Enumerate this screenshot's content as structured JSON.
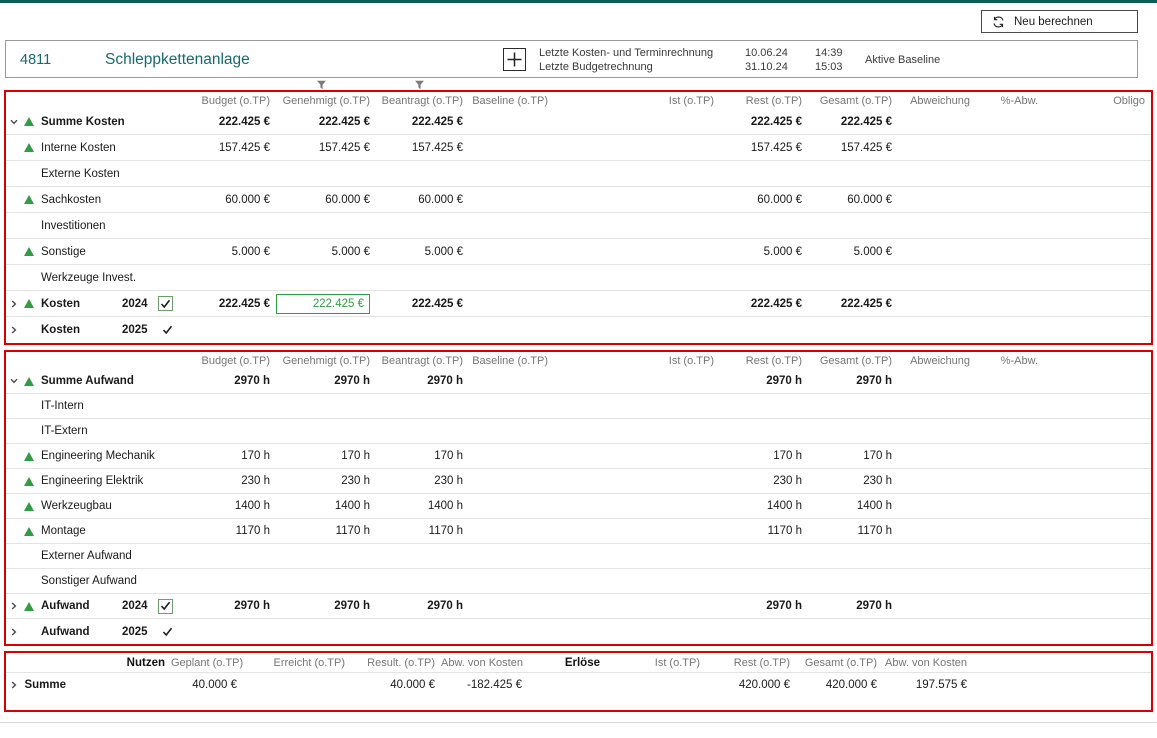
{
  "accent_colors": {
    "section_border": "#db0000",
    "positive_green": "#2f9e41",
    "brand_teal": "#156a70"
  },
  "toolbar": {
    "recalculate_label": "Neu berechnen"
  },
  "project_header": {
    "id": "4811",
    "name": "Schleppkettenanlage",
    "last_cost_schedule_calc_label": "Letzte Kosten- und Terminrechnung",
    "last_budget_calc_label": "Letzte Budgetrechnung",
    "last_cost_schedule_calc_date": "10.06.24",
    "last_cost_schedule_calc_time": "14:39",
    "last_budget_calc_date": "31.10.24",
    "last_budget_calc_time": "15:03",
    "active_baseline_label": "Aktive Baseline"
  },
  "costs_table": {
    "columns": [
      "Budget (o.TP)",
      "Genehmigt (o.TP)",
      "Beantragt (o.TP)",
      "Baseline (o.TP)",
      "Ist (o.TP)",
      "Rest (o.TP)",
      "Gesamt (o.TP)",
      "Abweichung",
      "%-Abw.",
      "Obligo"
    ],
    "filtered_columns": [
      "Genehmigt (o.TP)",
      "Beantragt (o.TP)"
    ],
    "rows": [
      {
        "label": "Summe Kosten",
        "bold": true,
        "chevron": "down",
        "triangle": true,
        "values": [
          "222.425 €",
          "222.425 €",
          "222.425 €",
          "",
          "",
          "222.425 €",
          "222.425 €",
          "",
          "",
          ""
        ]
      },
      {
        "label": "Interne Kosten",
        "triangle": true,
        "values": [
          "157.425 €",
          "157.425 €",
          "157.425 €",
          "",
          "",
          "157.425 €",
          "157.425 €",
          "",
          "",
          ""
        ]
      },
      {
        "label": "Externe Kosten",
        "values": [
          "",
          "",
          "",
          "",
          "",
          "",
          "",
          "",
          "",
          ""
        ]
      },
      {
        "label": "Sachkosten",
        "triangle": true,
        "values": [
          "60.000 €",
          "60.000 €",
          "60.000 €",
          "",
          "",
          "60.000 €",
          "60.000 €",
          "",
          "",
          ""
        ]
      },
      {
        "label": "Investitionen",
        "values": [
          "",
          "",
          "",
          "",
          "",
          "",
          "",
          "",
          "",
          ""
        ]
      },
      {
        "label": "Sonstige",
        "triangle": true,
        "values": [
          "5.000 €",
          "5.000 €",
          "5.000 €",
          "",
          "",
          "5.000 €",
          "5.000 €",
          "",
          "",
          ""
        ]
      },
      {
        "label": "Werkzeuge Invest.",
        "values": [
          "",
          "",
          "",
          "",
          "",
          "",
          "",
          "",
          "",
          ""
        ]
      },
      {
        "label": "Kosten",
        "year": "2024",
        "bold": true,
        "chevron": "right",
        "triangle": true,
        "checkbox": "boxed-checked",
        "highlight_col": 1,
        "values": [
          "222.425 €",
          "222.425 €",
          "222.425 €",
          "",
          "",
          "222.425 €",
          "222.425 €",
          "",
          "",
          ""
        ]
      },
      {
        "label": "Kosten",
        "year": "2025",
        "bold": true,
        "chevron": "right",
        "checkbox": "plain-check",
        "values": [
          "",
          "",
          "",
          "",
          "",
          "",
          "",
          "",
          "",
          ""
        ]
      }
    ]
  },
  "effort_table": {
    "columns": [
      "Budget (o.TP)",
      "Genehmigt (o.TP)",
      "Beantragt (o.TP)",
      "Baseline (o.TP)",
      "Ist (o.TP)",
      "Rest (o.TP)",
      "Gesamt (o.TP)",
      "Abweichung",
      "%-Abw."
    ],
    "rows": [
      {
        "label": "Summe Aufwand",
        "bold": true,
        "chevron": "down",
        "triangle": true,
        "values": [
          "2970 h",
          "2970 h",
          "2970 h",
          "",
          "",
          "2970 h",
          "2970 h",
          "",
          ""
        ]
      },
      {
        "label": "IT-Intern",
        "values": [
          "",
          "",
          "",
          "",
          "",
          "",
          "",
          "",
          ""
        ]
      },
      {
        "label": "IT-Extern",
        "values": [
          "",
          "",
          "",
          "",
          "",
          "",
          "",
          "",
          ""
        ]
      },
      {
        "label": "Engineering Mechanik",
        "triangle": true,
        "values": [
          "170 h",
          "170 h",
          "170 h",
          "",
          "",
          "170 h",
          "170 h",
          "",
          ""
        ]
      },
      {
        "label": "Engineering Elektrik",
        "triangle": true,
        "values": [
          "230 h",
          "230 h",
          "230 h",
          "",
          "",
          "230 h",
          "230 h",
          "",
          ""
        ]
      },
      {
        "label": "Werkzeugbau",
        "triangle": true,
        "values": [
          "1400 h",
          "1400 h",
          "1400 h",
          "",
          "",
          "1400 h",
          "1400 h",
          "",
          ""
        ]
      },
      {
        "label": "Montage",
        "triangle": true,
        "values": [
          "1170 h",
          "1170 h",
          "1170 h",
          "",
          "",
          "1170 h",
          "1170 h",
          "",
          ""
        ]
      },
      {
        "label": "Externer Aufwand",
        "values": [
          "",
          "",
          "",
          "",
          "",
          "",
          "",
          "",
          ""
        ]
      },
      {
        "label": "Sonstiger Aufwand",
        "values": [
          "",
          "",
          "",
          "",
          "",
          "",
          "",
          "",
          ""
        ]
      },
      {
        "label": "Aufwand",
        "year": "2024",
        "bold": true,
        "chevron": "right",
        "triangle": true,
        "checkbox": "boxed-checked",
        "values": [
          "2970 h",
          "2970 h",
          "2970 h",
          "",
          "",
          "2970 h",
          "2970 h",
          "",
          ""
        ]
      },
      {
        "label": "Aufwand",
        "year": "2025",
        "bold": true,
        "chevron": "right",
        "checkbox": "plain-check",
        "values": [
          "",
          "",
          "",
          "",
          "",
          "",
          "",
          "",
          ""
        ]
      }
    ]
  },
  "benefit_table": {
    "columns": [
      "Nutzen",
      "Geplant (o.TP)",
      "Erreicht (o.TP)",
      "Result. (o.TP)",
      "Abw. von Kosten",
      "Erlöse",
      "Ist (o.TP)",
      "Rest (o.TP)",
      "Gesamt (o.TP)",
      "Abw. von Kosten"
    ],
    "strong_columns": [
      0,
      5
    ],
    "rows": [
      {
        "label": "Summe",
        "label_bold": true,
        "chevron": "right",
        "values": [
          "",
          "40.000 €",
          "",
          "40.000 €",
          "-182.425 €",
          "",
          "",
          "420.000 €",
          "420.000 €",
          "197.575 €"
        ]
      }
    ]
  }
}
